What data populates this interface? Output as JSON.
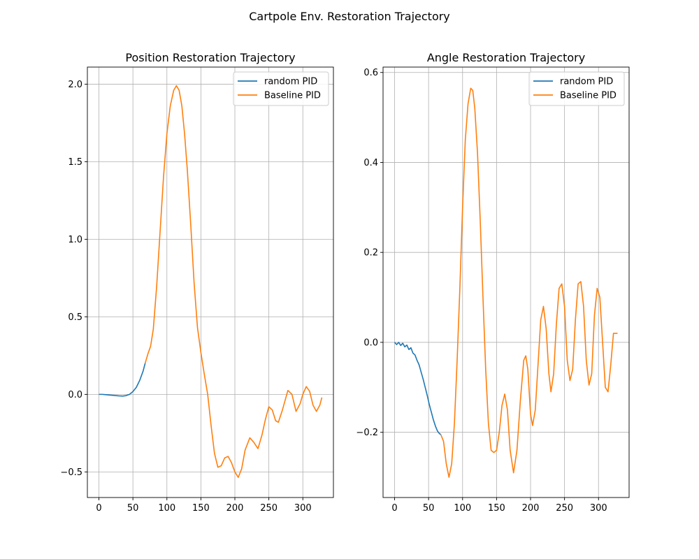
{
  "figure": {
    "title": "Cartpole Env. Restoration Trajectory"
  },
  "colors": {
    "random_pid": "#1f77b4",
    "baseline_pid": "#ff7f0e",
    "grid": "#b0b0b0",
    "axis": "#000000",
    "legend_border": "#cccccc"
  },
  "chart_data": [
    {
      "type": "line",
      "title": "Position Restoration Trajectory",
      "xlabel": "",
      "ylabel": "",
      "xlim": [
        -17,
        345
      ],
      "ylim": [
        -0.665,
        2.11
      ],
      "xticks": [
        0,
        50,
        100,
        150,
        200,
        250,
        300
      ],
      "yticks": [
        -0.5,
        0.0,
        0.5,
        1.0,
        1.5,
        2.0
      ],
      "ytick_labels": [
        "−0.5",
        "0.0",
        "0.5",
        "1.0",
        "1.5",
        "2.0"
      ],
      "grid": true,
      "legend": "upper-right",
      "series": [
        {
          "name": "random PID",
          "color": "#1f77b4",
          "x": [
            0,
            5,
            10,
            15,
            20,
            25,
            30,
            35,
            40,
            45,
            50,
            55,
            60,
            65,
            68
          ],
          "y": [
            0.0,
            0.0,
            -0.002,
            -0.004,
            -0.006,
            -0.008,
            -0.01,
            -0.011,
            -0.008,
            0.0,
            0.018,
            0.045,
            0.09,
            0.15,
            0.2
          ]
        },
        {
          "name": "Baseline PID",
          "color": "#ff7f0e",
          "x": [
            68,
            72,
            76,
            80,
            85,
            90,
            95,
            100,
            105,
            110,
            114,
            118,
            122,
            126,
            130,
            135,
            140,
            145,
            150,
            155,
            160,
            165,
            170,
            175,
            180,
            185,
            190,
            195,
            200,
            205,
            210,
            215,
            222,
            228,
            234,
            240,
            245,
            250,
            255,
            260,
            264,
            270,
            278,
            284,
            290,
            296,
            300,
            305,
            310,
            315,
            320,
            325,
            328
          ],
          "y": [
            0.2,
            0.26,
            0.31,
            0.42,
            0.7,
            1.05,
            1.4,
            1.68,
            1.86,
            1.96,
            1.99,
            1.96,
            1.86,
            1.68,
            1.45,
            1.1,
            0.72,
            0.43,
            0.27,
            0.13,
            0.0,
            -0.2,
            -0.38,
            -0.47,
            -0.46,
            -0.41,
            -0.4,
            -0.44,
            -0.5,
            -0.535,
            -0.48,
            -0.36,
            -0.28,
            -0.31,
            -0.35,
            -0.26,
            -0.16,
            -0.08,
            -0.1,
            -0.17,
            -0.18,
            -0.1,
            0.025,
            0.0,
            -0.11,
            -0.06,
            0.0,
            0.05,
            0.02,
            -0.07,
            -0.11,
            -0.07,
            -0.02
          ]
        }
      ]
    },
    {
      "type": "line",
      "title": "Angle Restoration Trajectory",
      "xlabel": "",
      "ylabel": "",
      "xlim": [
        -17,
        345
      ],
      "ylim": [
        -0.345,
        0.612
      ],
      "xticks": [
        0,
        50,
        100,
        150,
        200,
        250,
        300
      ],
      "yticks": [
        -0.2,
        0.0,
        0.2,
        0.4,
        0.6
      ],
      "ytick_labels": [
        "−0.2",
        "0.0",
        "0.2",
        "0.4",
        "0.6"
      ],
      "grid": true,
      "legend": "upper-right",
      "series": [
        {
          "name": "random PID",
          "color": "#1f77b4",
          "x": [
            0,
            3,
            6,
            9,
            12,
            15,
            18,
            21,
            24,
            27,
            30,
            33,
            36,
            39,
            42,
            45,
            48,
            51,
            54,
            57,
            60,
            63,
            66,
            68
          ],
          "y": [
            0.0,
            -0.005,
            0.0,
            -0.007,
            -0.002,
            -0.01,
            -0.006,
            -0.016,
            -0.012,
            -0.024,
            -0.028,
            -0.04,
            -0.05,
            -0.066,
            -0.082,
            -0.1,
            -0.118,
            -0.138,
            -0.155,
            -0.172,
            -0.186,
            -0.197,
            -0.203,
            -0.205
          ]
        },
        {
          "name": "Baseline PID",
          "color": "#ff7f0e",
          "x": [
            68,
            72,
            76,
            80,
            84,
            88,
            92,
            96,
            100,
            104,
            108,
            112,
            115,
            118,
            122,
            126,
            130,
            134,
            138,
            142,
            146,
            150,
            154,
            158,
            162,
            166,
            170,
            175,
            180,
            185,
            190,
            193,
            196,
            200,
            203,
            207,
            211,
            215,
            219,
            223,
            227,
            230,
            234,
            238,
            242,
            246,
            250,
            254,
            258,
            262,
            266,
            270,
            274,
            278,
            282,
            286,
            290,
            294,
            298,
            302,
            306,
            310,
            314,
            318,
            322,
            326,
            328
          ],
          "y": [
            -0.205,
            -0.22,
            -0.27,
            -0.3,
            -0.27,
            -0.18,
            -0.04,
            0.12,
            0.3,
            0.45,
            0.53,
            0.565,
            0.56,
            0.52,
            0.42,
            0.27,
            0.1,
            -0.06,
            -0.18,
            -0.24,
            -0.245,
            -0.24,
            -0.2,
            -0.14,
            -0.115,
            -0.15,
            -0.24,
            -0.29,
            -0.24,
            -0.13,
            -0.04,
            -0.03,
            -0.06,
            -0.16,
            -0.185,
            -0.15,
            -0.05,
            0.05,
            0.08,
            0.03,
            -0.07,
            -0.11,
            -0.07,
            0.04,
            0.12,
            0.13,
            0.08,
            -0.04,
            -0.085,
            -0.06,
            0.05,
            0.13,
            0.135,
            0.08,
            -0.04,
            -0.095,
            -0.07,
            0.06,
            0.12,
            0.1,
            0.0,
            -0.1,
            -0.11,
            -0.05,
            0.02,
            0.02,
            0.02
          ]
        }
      ]
    }
  ]
}
